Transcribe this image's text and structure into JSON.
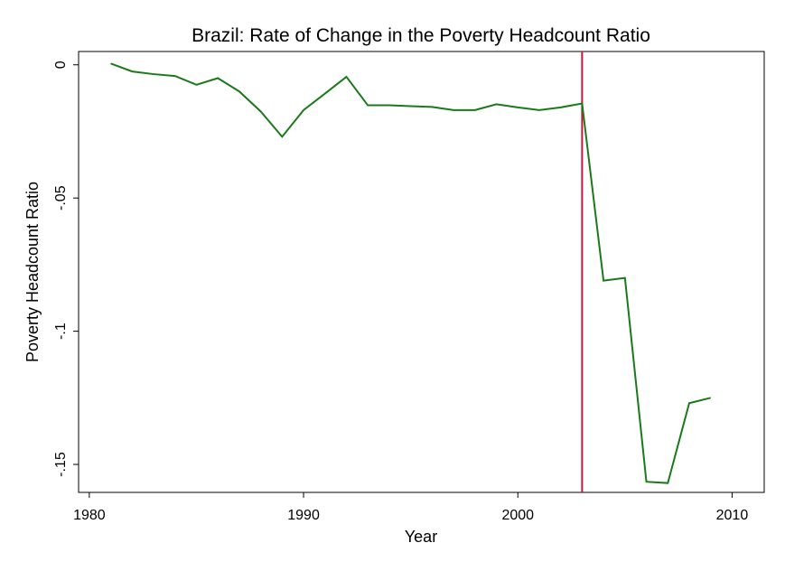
{
  "chart_data": {
    "type": "line",
    "title": "Brazil: Rate of Change in the Poverty Headcount Ratio",
    "xlabel": "Year",
    "ylabel": "Poverty Headcount Ratio",
    "xlim": [
      1979.5,
      2011.5
    ],
    "ylim": [
      -0.1605,
      0.005
    ],
    "x_ticks": [
      1980,
      1990,
      2000,
      2010
    ],
    "x_tick_labels": [
      "1980",
      "1990",
      "2000",
      "2010"
    ],
    "y_ticks": [
      0,
      -0.05,
      -0.1,
      -0.15
    ],
    "y_tick_labels": [
      "0",
      "-.05",
      "-.1",
      "-.15"
    ],
    "grid": false,
    "legend": "none",
    "series": [
      {
        "color": "#1a7a1a",
        "x": [
          1981,
          1982,
          1983,
          1984,
          1985,
          1986,
          1987,
          1988,
          1989,
          1990,
          1991,
          1992,
          1993,
          1994,
          1995,
          1996,
          1997,
          1998,
          1999,
          2000,
          2001,
          2002,
          2003,
          2004,
          2005,
          2006,
          2007,
          2008,
          2009
        ],
        "values": [
          0.0005,
          -0.0025,
          -0.0035,
          -0.0042,
          -0.0075,
          -0.005,
          -0.01,
          -0.0175,
          -0.027,
          -0.017,
          -0.0108,
          -0.0045,
          -0.0152,
          -0.0152,
          -0.0155,
          -0.0158,
          -0.017,
          -0.017,
          -0.0148,
          -0.016,
          -0.017,
          -0.016,
          -0.0145,
          -0.081,
          -0.08,
          -0.1565,
          -0.157,
          -0.127,
          -0.125
        ]
      }
    ],
    "reference_lines": [
      {
        "orientation": "vertical",
        "x": 2003,
        "color": "#d0103a"
      }
    ]
  }
}
